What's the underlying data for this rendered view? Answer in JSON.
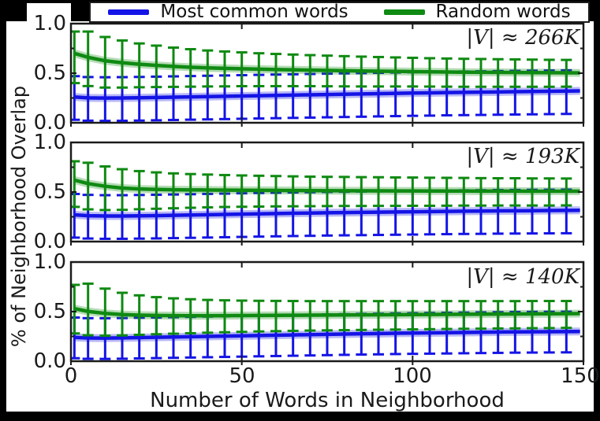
{
  "colors": {
    "background": "#000000",
    "figure": "#ffffff",
    "axis": "#1a1a1a",
    "blue": "#1414e6",
    "green": "#0f8a12"
  },
  "axes": {
    "ytick_labels": [
      "1.0",
      "0.5",
      "0.0"
    ],
    "xtick_labels": [
      "0",
      "50",
      "100",
      "150"
    ]
  },
  "chart_data": {
    "type": "line",
    "layout": {
      "rows": 3,
      "shared_x": true,
      "grid": false,
      "legend_position": "top"
    },
    "xlabel": "Number of Words in Neighborhood",
    "ylabel": "% of Neighborhood Overlap",
    "xlim": [
      0,
      150
    ],
    "ylim": [
      0,
      1
    ],
    "xticks": [
      0,
      50,
      100,
      150
    ],
    "yticks": [
      0.0,
      0.5,
      1.0
    ],
    "legend": {
      "items": [
        {
          "label": "Most common words",
          "color": "#1414e6"
        },
        {
          "label": "Random words",
          "color": "#0f8a12"
        }
      ]
    },
    "x": [
      1,
      5,
      10,
      15,
      20,
      25,
      30,
      35,
      40,
      45,
      50,
      55,
      60,
      65,
      70,
      75,
      80,
      85,
      90,
      95,
      100,
      105,
      110,
      115,
      120,
      125,
      130,
      135,
      140,
      145,
      149
    ],
    "subplots": [
      {
        "label": "|V| ≈ 266K",
        "series": [
          {
            "name": "Most common words",
            "color": "#1414e6",
            "y": [
              0.26,
              0.251,
              0.249,
              0.25,
              0.252,
              0.255,
              0.258,
              0.261,
              0.264,
              0.267,
              0.27,
              0.273,
              0.276,
              0.279,
              0.282,
              0.285,
              0.288,
              0.291,
              0.294,
              0.297,
              0.3,
              0.302,
              0.305,
              0.307,
              0.309,
              0.311,
              0.313,
              0.315,
              0.317,
              0.319,
              0.321
            ],
            "err_up": 0.21,
            "err_dn": 0.23
          },
          {
            "name": "Random words",
            "color": "#0f8a12",
            "y": [
              0.7,
              0.66,
              0.625,
              0.605,
              0.59,
              0.578,
              0.568,
              0.56,
              0.554,
              0.549,
              0.545,
              0.541,
              0.537,
              0.534,
              0.531,
              0.528,
              0.525,
              0.522,
              0.52,
              0.518,
              0.516,
              0.514,
              0.512,
              0.51,
              0.509,
              0.508,
              0.507,
              0.506,
              0.505,
              0.504,
              0.503
            ],
            "err_up": [
              0.22,
              0.26,
              0.24,
              0.225,
              0.21,
              0.2,
              0.19,
              0.182,
              0.175,
              0.17,
              0.165,
              0.16,
              0.157,
              0.154,
              0.151,
              0.149,
              0.147,
              0.145,
              0.143,
              0.141,
              0.139,
              0.137,
              0.136,
              0.135,
              0.134,
              0.133,
              0.132,
              0.131,
              0.13,
              0.13,
              null
            ],
            "err_dn": [
              0.3,
              0.29,
              0.27,
              0.25,
              0.232,
              0.218,
              0.206,
              0.196,
              0.188,
              0.182,
              0.176,
              0.172,
              0.168,
              0.165,
              0.162,
              0.16,
              0.158,
              0.156,
              0.154,
              0.152,
              0.15,
              0.149,
              0.148,
              0.147,
              0.146,
              0.145,
              0.144,
              0.143,
              0.142,
              0.14,
              null
            ]
          }
        ]
      },
      {
        "label": "|V| ≈ 193K",
        "series": [
          {
            "name": "Most common words",
            "color": "#1414e6",
            "y": [
              0.27,
              0.261,
              0.258,
              0.258,
              0.26,
              0.262,
              0.265,
              0.268,
              0.271,
              0.274,
              0.277,
              0.28,
              0.283,
              0.286,
              0.288,
              0.291,
              0.293,
              0.295,
              0.297,
              0.299,
              0.301,
              0.303,
              0.305,
              0.307,
              0.308,
              0.31,
              0.311,
              0.312,
              0.313,
              0.314,
              0.315
            ],
            "err_up": 0.21,
            "err_dn": 0.23
          },
          {
            "name": "Random words",
            "color": "#0f8a12",
            "y": [
              0.62,
              0.585,
              0.558,
              0.54,
              0.531,
              0.526,
              0.523,
              0.521,
              0.52,
              0.519,
              0.518,
              0.517,
              0.516,
              0.515,
              0.514,
              0.513,
              0.513,
              0.512,
              0.512,
              0.511,
              0.511,
              0.51,
              0.51,
              0.51,
              0.509,
              0.509,
              0.509,
              0.508,
              0.508,
              0.508,
              0.508
            ],
            "err_up": [
              0.19,
              0.21,
              0.2,
              0.19,
              0.18,
              0.172,
              0.165,
              0.16,
              0.156,
              0.152,
              0.149,
              0.147,
              0.145,
              0.143,
              0.141,
              0.14,
              0.139,
              0.138,
              0.137,
              0.136,
              0.135,
              0.134,
              0.133,
              0.132,
              0.131,
              0.13,
              0.13,
              0.129,
              0.129,
              0.128,
              null
            ],
            "err_dn": [
              0.27,
              0.26,
              0.24,
              0.22,
              0.205,
              0.195,
              0.187,
              0.18,
              0.175,
              0.17,
              0.167,
              0.164,
              0.161,
              0.159,
              0.157,
              0.155,
              0.154,
              0.153,
              0.152,
              0.151,
              0.15,
              0.149,
              0.148,
              0.147,
              0.146,
              0.145,
              0.145,
              0.144,
              0.144,
              0.143,
              null
            ]
          }
        ]
      },
      {
        "label": "|V| ≈ 140K",
        "series": [
          {
            "name": "Most common words",
            "color": "#1414e6",
            "y": [
              0.24,
              0.234,
              0.233,
              0.235,
              0.238,
              0.241,
              0.244,
              0.247,
              0.25,
              0.253,
              0.256,
              0.259,
              0.262,
              0.265,
              0.268,
              0.271,
              0.274,
              0.277,
              0.279,
              0.282,
              0.284,
              0.286,
              0.288,
              0.29,
              0.292,
              0.294,
              0.296,
              0.297,
              0.298,
              0.299,
              0.3
            ],
            "err_up": 0.2,
            "err_dn": 0.21
          },
          {
            "name": "Random words",
            "color": "#0f8a12",
            "y": [
              0.53,
              0.502,
              0.482,
              0.47,
              0.464,
              0.461,
              0.459,
              0.458,
              0.458,
              0.459,
              0.46,
              0.461,
              0.462,
              0.463,
              0.464,
              0.465,
              0.466,
              0.467,
              0.468,
              0.469,
              0.47,
              0.471,
              0.472,
              0.473,
              0.474,
              0.475,
              0.476,
              0.477,
              0.478,
              0.479,
              0.48
            ],
            "err_up": [
              0.24,
              0.28,
              0.25,
              0.22,
              0.2,
              0.185,
              0.175,
              0.167,
              0.16,
              0.155,
              0.151,
              0.148,
              0.146,
              0.144,
              0.142,
              0.141,
              0.14,
              0.139,
              0.138,
              0.137,
              0.136,
              0.135,
              0.134,
              0.133,
              0.132,
              0.131,
              0.13,
              0.13,
              0.129,
              0.128,
              null
            ],
            "err_dn": [
              0.25,
              0.24,
              0.225,
              0.21,
              0.198,
              0.189,
              0.182,
              0.176,
              0.171,
              0.167,
              0.164,
              0.161,
              0.159,
              0.157,
              0.155,
              0.154,
              0.153,
              0.152,
              0.151,
              0.15,
              0.149,
              0.148,
              0.147,
              0.146,
              0.146,
              0.145,
              0.145,
              0.144,
              0.144,
              0.143,
              null
            ]
          }
        ]
      }
    ]
  }
}
